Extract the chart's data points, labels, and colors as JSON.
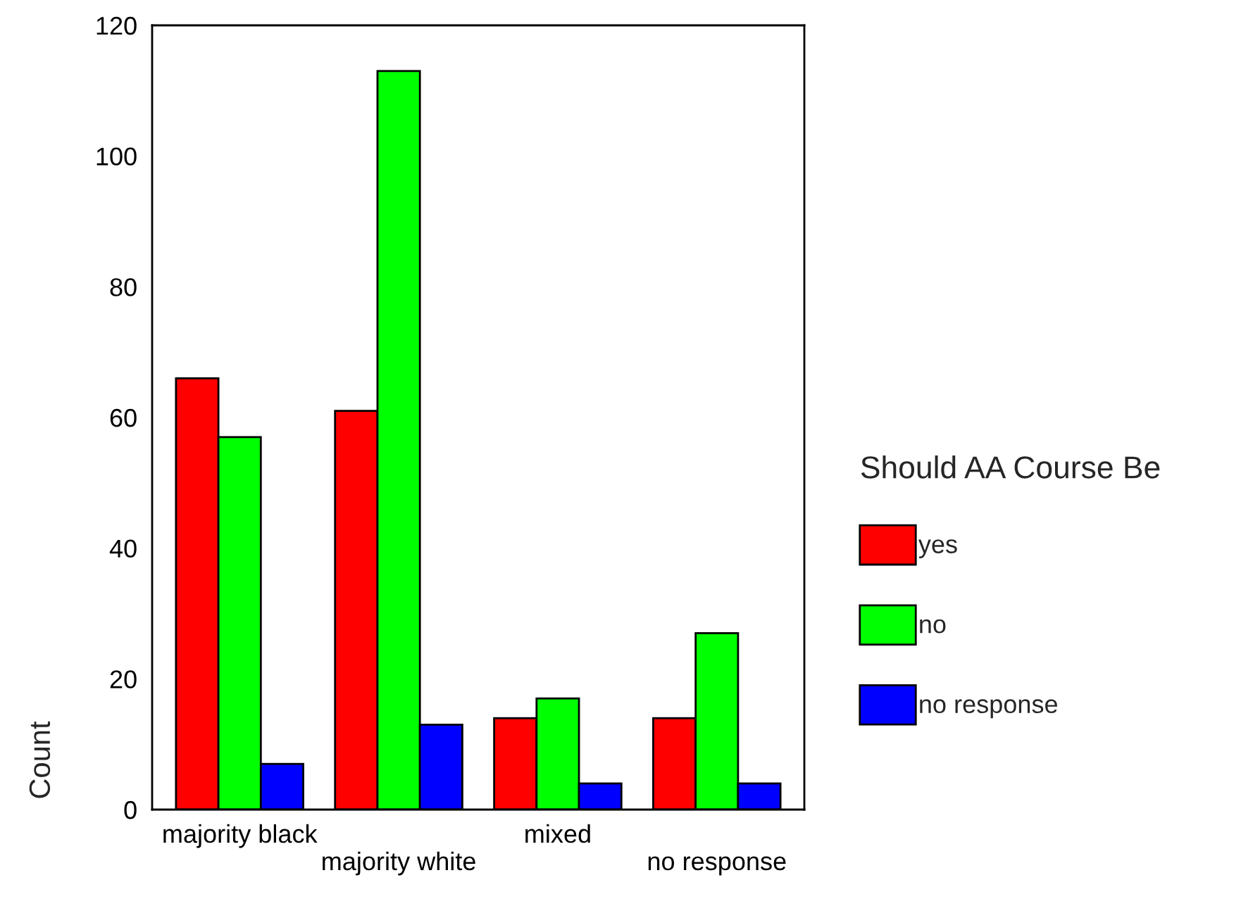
{
  "chart_data": {
    "type": "bar",
    "ylabel": "Count",
    "legend_title": "Should AA Course Be",
    "categories": [
      "majority black",
      "majority white",
      "mixed",
      "no response"
    ],
    "series": [
      {
        "name": "yes",
        "color": "#ff0000",
        "values": [
          66,
          61,
          14,
          14
        ]
      },
      {
        "name": "no",
        "color": "#00ff00",
        "values": [
          57,
          113,
          17,
          27
        ]
      },
      {
        "name": "no response",
        "color": "#0000ff",
        "values": [
          7,
          13,
          4,
          4
        ]
      }
    ],
    "ylim": [
      0,
      120
    ],
    "yticks": [
      0,
      20,
      40,
      60,
      80,
      100,
      120
    ],
    "grid": false,
    "legend": "right"
  }
}
